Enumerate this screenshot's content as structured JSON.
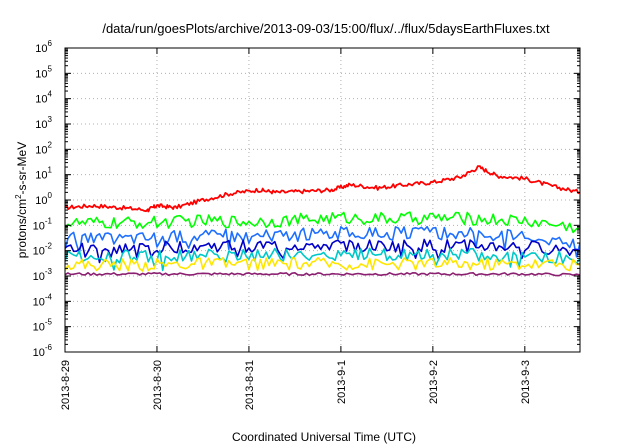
{
  "chart_data": {
    "type": "line",
    "title": "/data/run/goesPlots/archive/2013-09-03/15:00/flux/../flux/5daysEarthFluxes.txt",
    "xlabel": "Coordinated Universal Time (UTC)",
    "ylabel": "protons/cm²-s-sr-MeV",
    "ylabel_parts": {
      "pre": "protons/cm",
      "sup": "2",
      "post": "-s-sr-MeV"
    },
    "yscale": "log",
    "ylim": [
      1e-06,
      1000000.0
    ],
    "ytick_exponents": [
      -6,
      -5,
      -4,
      -3,
      -2,
      -1,
      0,
      1,
      2,
      3,
      4,
      5,
      6
    ],
    "ytick_base": "10",
    "x_categories": [
      "2013-8-29",
      "2013-8-30",
      "2013-8-31",
      "2013-9-1",
      "2013-9-2",
      "2013-9-3"
    ],
    "xlim_days": [
      0,
      5.6
    ],
    "grid": true,
    "legend": "none",
    "series": [
      {
        "color": "#ff0000",
        "x": [
          0,
          0.3,
          0.6,
          0.9,
          1.0,
          1.2,
          1.5,
          1.8,
          2.1,
          2.3,
          2.6,
          2.9,
          3.1,
          3.4,
          3.7,
          4.0,
          4.3,
          4.5,
          4.7,
          5.0,
          5.3,
          5.6
        ],
        "y": [
          0.5,
          0.6,
          0.5,
          0.4,
          0.6,
          0.5,
          1.0,
          1.8,
          2.5,
          2.0,
          2.2,
          2.5,
          4.0,
          3.0,
          4.0,
          5.0,
          8.0,
          20,
          9.0,
          7.0,
          3.5,
          2.0
        ]
      },
      {
        "color": "#00ff00",
        "x": [
          0,
          0.5,
          1.0,
          1.5,
          2.0,
          2.5,
          3.0,
          3.5,
          4.0,
          4.5,
          5.0,
          5.6
        ],
        "y": [
          0.12,
          0.12,
          0.13,
          0.15,
          0.14,
          0.16,
          0.2,
          0.18,
          0.2,
          0.18,
          0.15,
          0.08
        ]
      },
      {
        "color": "#1e6fff",
        "x": [
          0,
          0.5,
          1.0,
          1.5,
          2.0,
          2.5,
          3.0,
          3.5,
          4.0,
          4.5,
          5.0,
          5.6
        ],
        "y": [
          0.03,
          0.03,
          0.035,
          0.04,
          0.04,
          0.045,
          0.05,
          0.05,
          0.05,
          0.045,
          0.04,
          0.02
        ]
      },
      {
        "color": "#0000c8",
        "x": [
          0,
          0.5,
          1.0,
          1.5,
          2.0,
          2.5,
          3.0,
          3.5,
          4.0,
          4.5,
          5.0,
          5.6
        ],
        "y": [
          0.012,
          0.012,
          0.013,
          0.015,
          0.015,
          0.016,
          0.016,
          0.015,
          0.016,
          0.015,
          0.014,
          0.01
        ]
      },
      {
        "color": "#00c8c8",
        "x": [
          0,
          0.5,
          1.0,
          1.5,
          2.0,
          2.5,
          3.0,
          3.5,
          4.0,
          4.5,
          5.0,
          5.6
        ],
        "y": [
          0.006,
          0.006,
          0.006,
          0.007,
          0.007,
          0.007,
          0.007,
          0.007,
          0.007,
          0.007,
          0.006,
          0.005
        ]
      },
      {
        "color": "#ffe600",
        "x": [
          0,
          0.5,
          1.0,
          1.5,
          2.0,
          2.5,
          3.0,
          3.5,
          4.0,
          4.5,
          5.0,
          5.6
        ],
        "y": [
          0.0028,
          0.0028,
          0.0028,
          0.003,
          0.003,
          0.003,
          0.003,
          0.003,
          0.003,
          0.003,
          0.003,
          0.0028
        ]
      },
      {
        "color": "#8b2070",
        "x": [
          0,
          0.5,
          1.0,
          1.5,
          2.0,
          2.5,
          3.0,
          3.5,
          4.0,
          4.5,
          5.0,
          5.6
        ],
        "y": [
          0.0012,
          0.0012,
          0.0012,
          0.0012,
          0.0012,
          0.0012,
          0.0012,
          0.0012,
          0.0012,
          0.0012,
          0.0012,
          0.0011
        ]
      }
    ]
  }
}
